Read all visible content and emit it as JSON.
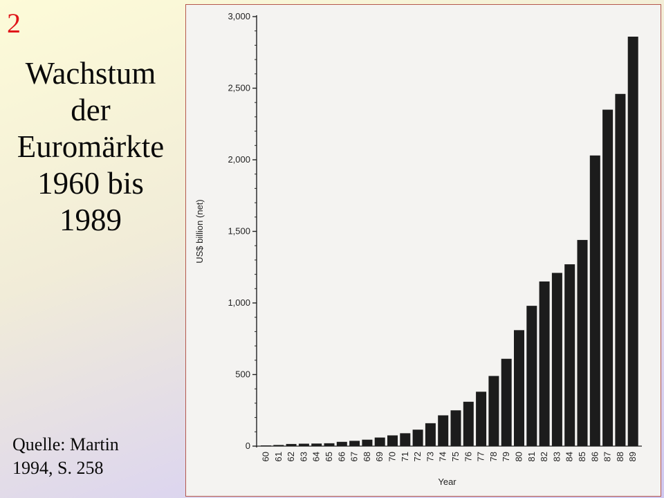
{
  "slide": {
    "number": "2",
    "title_lines": [
      "Wachstum",
      "der",
      "Euromärkte",
      "1960 bis",
      "1989"
    ],
    "source_lines": [
      "Quelle: Martin",
      "1994, S. 258"
    ],
    "colors": {
      "number": "#e0161a",
      "text": "#0a0a0a",
      "bars": "#1c1c1c",
      "frame": "#b4574c"
    }
  },
  "chart_data": {
    "type": "bar",
    "title": "",
    "xlabel": "Year",
    "ylabel": "US$ billion (net)",
    "ylim": [
      0,
      3000
    ],
    "yticks": [
      0,
      500,
      1000,
      1500,
      2000,
      2500,
      3000
    ],
    "ytick_labels": [
      "0",
      "500",
      "1,000",
      "1,500",
      "2,000",
      "2,500",
      "3,000"
    ],
    "categories": [
      "60",
      "61",
      "62",
      "63",
      "64",
      "65",
      "66",
      "67",
      "68",
      "69",
      "70",
      "71",
      "72",
      "73",
      "74",
      "75",
      "76",
      "77",
      "78",
      "79",
      "80",
      "81",
      "82",
      "83",
      "84",
      "85",
      "86",
      "87",
      "88",
      "89"
    ],
    "values": [
      5,
      8,
      15,
      17,
      18,
      20,
      30,
      37,
      45,
      60,
      75,
      90,
      115,
      160,
      215,
      250,
      310,
      380,
      490,
      610,
      810,
      980,
      1150,
      1210,
      1270,
      1440,
      2030,
      2350,
      2460,
      2860
    ],
    "grid": false,
    "legend": "none"
  }
}
